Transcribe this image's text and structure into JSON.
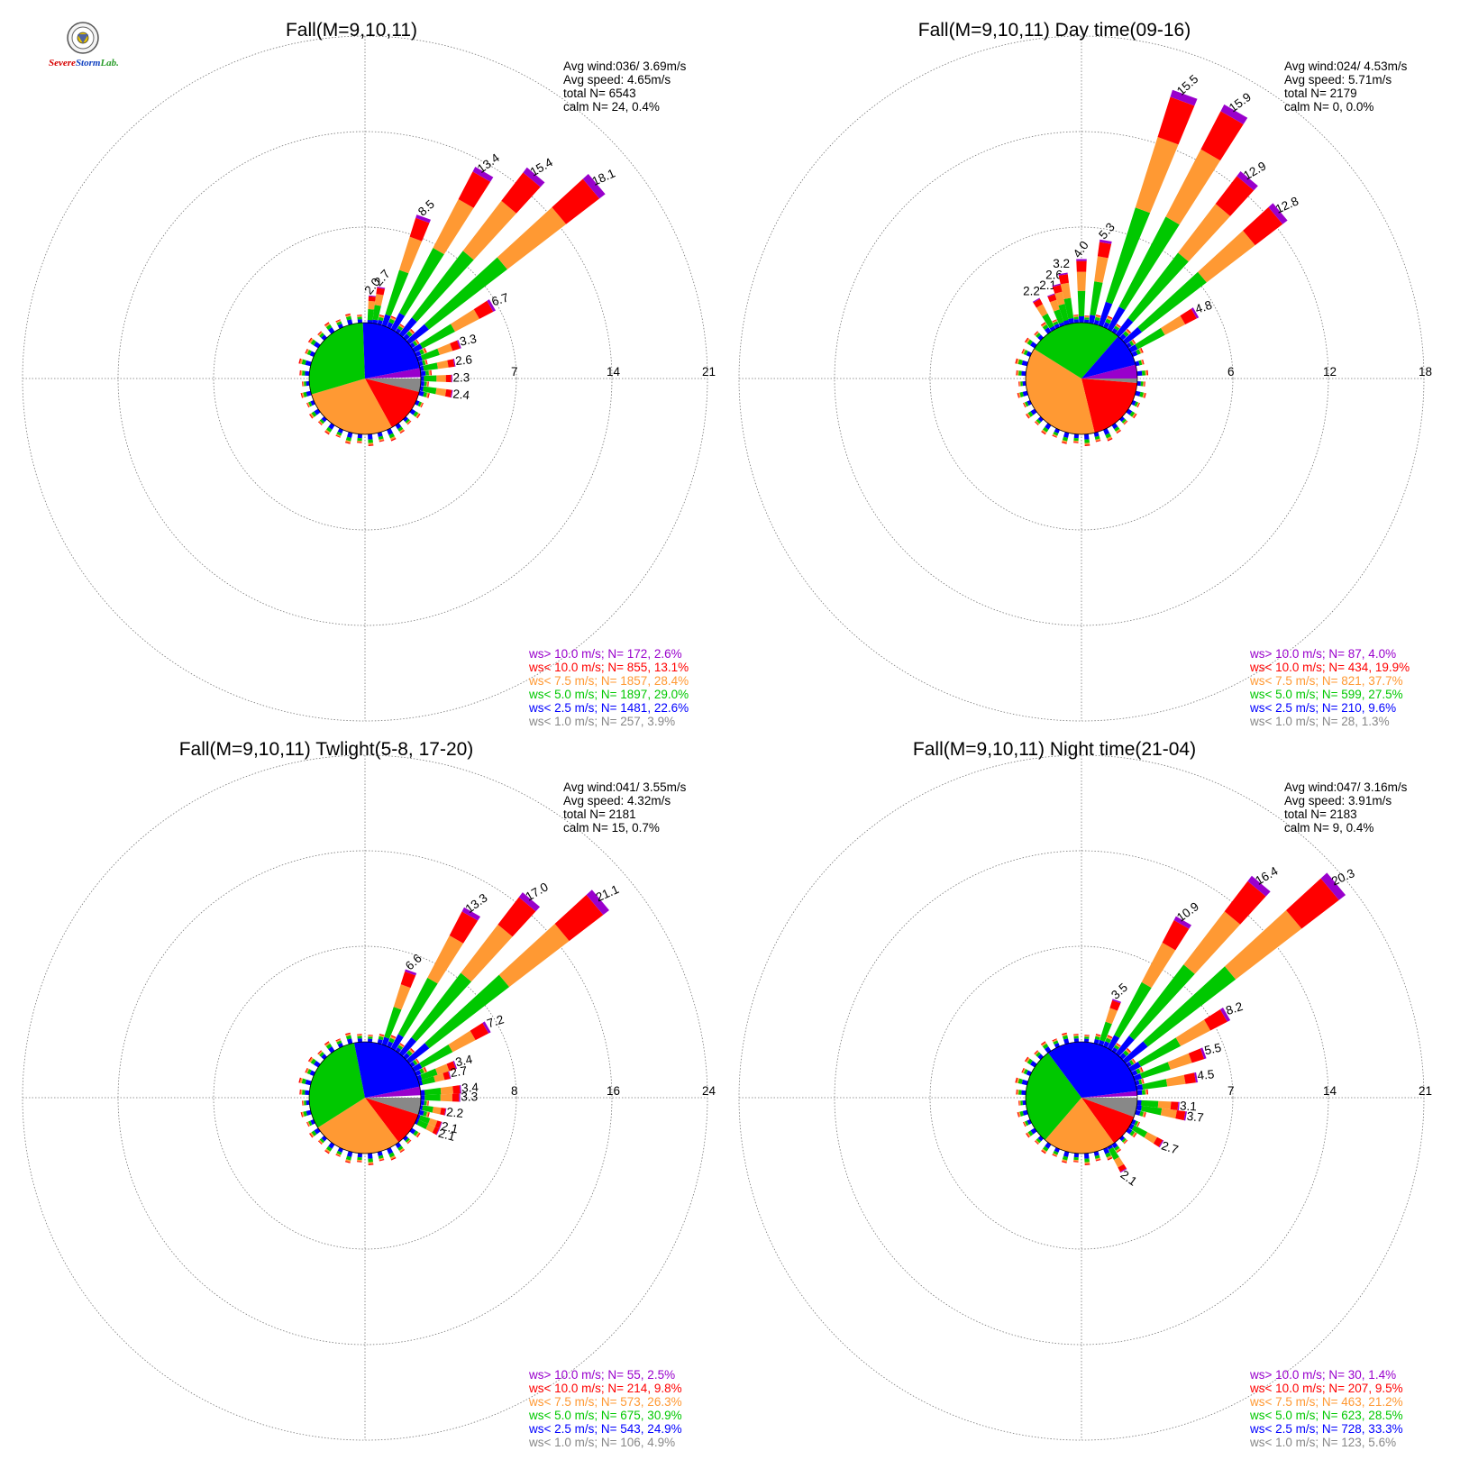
{
  "logo": {
    "word1": "S",
    "word2": "evere",
    "word3": "Storm",
    "word4": "Lab."
  },
  "colors": {
    "calm": "#888888",
    "lt2_5": "#0000ff",
    "lt5": "#00c800",
    "lt7_5": "#ff9933",
    "lt10": "#ff0000",
    "gt10": "#9900cc"
  },
  "chart_data": [
    {
      "type": "windrose",
      "title": "Fall(M=9,10,11)",
      "stats": [
        "Avg wind:036/ 3.69m/s",
        "Avg speed: 4.65m/s",
        "total N=       6543",
        "calm N=     24,   0.4%"
      ],
      "rings": [
        7,
        14,
        21
      ],
      "ring_labels": [
        "7",
        "14",
        "21"
      ],
      "pie": [
        {
          "cls": "calm",
          "pct": 3.9
        },
        {
          "cls": "lt10",
          "pct": 13.1
        },
        {
          "cls": "lt7_5",
          "pct": 28.4
        },
        {
          "cls": "lt5",
          "pct": 29.0
        },
        {
          "cls": "lt2_5",
          "pct": 22.6
        },
        {
          "cls": "gt10",
          "pct": 2.6
        }
      ],
      "petals": [
        {
          "dir": 5,
          "value": 2.0,
          "label": "2.0"
        },
        {
          "dir": 10,
          "value": 2.7,
          "label": "2.7"
        },
        {
          "dir": 20,
          "value": 8.5,
          "label": "8.5"
        },
        {
          "dir": 30,
          "value": 13.4,
          "label": "13.4"
        },
        {
          "dir": 40,
          "value": 15.4,
          "label": "15.4"
        },
        {
          "dir": 50,
          "value": 18.1,
          "label": "18.1"
        },
        {
          "dir": 60,
          "value": 6.7,
          "label": "6.7"
        },
        {
          "dir": 70,
          "value": 3.3,
          "label": "3.3"
        },
        {
          "dir": 80,
          "value": 2.6,
          "label": "2.6"
        },
        {
          "dir": 90,
          "value": 2.3,
          "label": "2.3"
        },
        {
          "dir": 100,
          "value": 2.4,
          "label": "2.4"
        }
      ],
      "legend": [
        {
          "cls": "gt10",
          "text": "ws> 10.0 m/s; N=   172,  2.6%"
        },
        {
          "cls": "lt10",
          "text": "ws< 10.0 m/s; N=   855, 13.1%"
        },
        {
          "cls": "lt7_5",
          "text": "ws<  7.5 m/s; N=  1857, 28.4%"
        },
        {
          "cls": "lt5",
          "text": "ws<  5.0 m/s; N=  1897, 29.0%"
        },
        {
          "cls": "lt2_5",
          "text": "ws<  2.5 m/s; N=  1481, 22.6%"
        },
        {
          "cls": "calm",
          "text": "ws<  1.0 m/s; N=   257,  3.9%"
        }
      ]
    },
    {
      "type": "windrose",
      "title": "Fall(M=9,10,11) Day time(09-16)",
      "stats": [
        "Avg wind:024/ 4.53m/s",
        "Avg speed: 5.71m/s",
        "total N=       2179",
        "calm N=      0,   0.0%"
      ],
      "rings": [
        6,
        12,
        18
      ],
      "ring_labels": [
        "6",
        "12",
        "18"
      ],
      "pie": [
        {
          "cls": "calm",
          "pct": 1.3
        },
        {
          "cls": "lt10",
          "pct": 19.9
        },
        {
          "cls": "lt7_5",
          "pct": 37.7
        },
        {
          "cls": "lt5",
          "pct": 27.5
        },
        {
          "cls": "lt2_5",
          "pct": 9.6
        },
        {
          "cls": "gt10",
          "pct": 4.0
        }
      ],
      "petals": [
        {
          "dir": 330,
          "value": 2.2,
          "label": "2.2"
        },
        {
          "dir": 340,
          "value": 2.1,
          "label": "2.1"
        },
        {
          "dir": 345,
          "value": 2.6,
          "label": "2.6"
        },
        {
          "dir": 350,
          "value": 3.2,
          "label": "3.2"
        },
        {
          "dir": 0,
          "value": 4.0,
          "label": "4.0"
        },
        {
          "dir": 10,
          "value": 5.3,
          "label": "5.3"
        },
        {
          "dir": 20,
          "value": 15.5,
          "label": "15.5"
        },
        {
          "dir": 30,
          "value": 15.9,
          "label": "15.9"
        },
        {
          "dir": 40,
          "value": 12.9,
          "label": "12.9"
        },
        {
          "dir": 50,
          "value": 12.8,
          "label": "12.8"
        },
        {
          "dir": 60,
          "value": 4.8,
          "label": "4.8"
        }
      ],
      "legend": [
        {
          "cls": "gt10",
          "text": "ws> 10.0 m/s; N=    87,  4.0%"
        },
        {
          "cls": "lt10",
          "text": "ws< 10.0 m/s; N=   434, 19.9%"
        },
        {
          "cls": "lt7_5",
          "text": "ws<  7.5 m/s; N=   821, 37.7%"
        },
        {
          "cls": "lt5",
          "text": "ws<  5.0 m/s; N=   599, 27.5%"
        },
        {
          "cls": "lt2_5",
          "text": "ws<  2.5 m/s; N=   210,  9.6%"
        },
        {
          "cls": "calm",
          "text": "ws<  1.0 m/s; N=    28,  1.3%"
        }
      ]
    },
    {
      "type": "windrose",
      "title": "Fall(M=9,10,11) Twlight(5-8, 17-20)",
      "stats": [
        "Avg wind:041/ 3.55m/s",
        "Avg speed: 4.32m/s",
        "total N=       2181",
        "calm N=     15,   0.7%"
      ],
      "rings": [
        8,
        16,
        24
      ],
      "ring_labels": [
        "8",
        "16",
        "24"
      ],
      "pie": [
        {
          "cls": "calm",
          "pct": 4.9
        },
        {
          "cls": "lt10",
          "pct": 9.8
        },
        {
          "cls": "lt7_5",
          "pct": 26.3
        },
        {
          "cls": "lt5",
          "pct": 30.9
        },
        {
          "cls": "lt2_5",
          "pct": 24.9
        },
        {
          "cls": "gt10",
          "pct": 2.5
        }
      ],
      "petals": [
        {
          "dir": 20,
          "value": 6.6,
          "label": "6.6"
        },
        {
          "dir": 30,
          "value": 13.3,
          "label": "13.3"
        },
        {
          "dir": 40,
          "value": 17.0,
          "label": "17.0"
        },
        {
          "dir": 50,
          "value": 21.1,
          "label": "21.1"
        },
        {
          "dir": 60,
          "value": 7.2,
          "label": "7.2"
        },
        {
          "dir": 70,
          "value": 3.4,
          "label": "3.4"
        },
        {
          "dir": 75,
          "value": 2.7,
          "label": "2.7"
        },
        {
          "dir": 85,
          "value": 3.4,
          "label": "3.4"
        },
        {
          "dir": 90,
          "value": 3.3,
          "label": "3.3"
        },
        {
          "dir": 100,
          "value": 2.2,
          "label": "2.2"
        },
        {
          "dir": 110,
          "value": 2.1,
          "label": "2.1"
        },
        {
          "dir": 115,
          "value": 2.1,
          "label": "2.1"
        }
      ],
      "legend": [
        {
          "cls": "gt10",
          "text": "ws> 10.0 m/s; N=    55,  2.5%"
        },
        {
          "cls": "lt10",
          "text": "ws< 10.0 m/s; N=   214,  9.8%"
        },
        {
          "cls": "lt7_5",
          "text": "ws<  7.5 m/s; N=   573, 26.3%"
        },
        {
          "cls": "lt5",
          "text": "ws<  5.0 m/s; N=   675, 30.9%"
        },
        {
          "cls": "lt2_5",
          "text": "ws<  2.5 m/s; N=   543, 24.9%"
        },
        {
          "cls": "calm",
          "text": "ws<  1.0 m/s; N=   106,  4.9%"
        }
      ]
    },
    {
      "type": "windrose",
      "title": "Fall(M=9,10,11) Night time(21-04)",
      "stats": [
        "Avg wind:047/ 3.16m/s",
        "Avg speed: 3.91m/s",
        "total N=       2183",
        "calm N=      9,   0.4%"
      ],
      "rings": [
        7,
        14,
        21
      ],
      "ring_labels": [
        "7",
        "14",
        "21"
      ],
      "pie": [
        {
          "cls": "calm",
          "pct": 5.6
        },
        {
          "cls": "lt10",
          "pct": 9.5
        },
        {
          "cls": "lt7_5",
          "pct": 21.2
        },
        {
          "cls": "lt5",
          "pct": 28.5
        },
        {
          "cls": "lt2_5",
          "pct": 33.3
        },
        {
          "cls": "gt10",
          "pct": 1.4
        }
      ],
      "petals": [
        {
          "dir": 20,
          "value": 3.5,
          "label": "3.5"
        },
        {
          "dir": 30,
          "value": 10.9,
          "label": "10.9"
        },
        {
          "dir": 40,
          "value": 16.4,
          "label": "16.4"
        },
        {
          "dir": 50,
          "value": 20.3,
          "label": "20.3"
        },
        {
          "dir": 60,
          "value": 8.2,
          "label": "8.2"
        },
        {
          "dir": 70,
          "value": 5.5,
          "label": "5.5"
        },
        {
          "dir": 80,
          "value": 4.5,
          "label": "4.5"
        },
        {
          "dir": 95,
          "value": 3.1,
          "label": "3.1"
        },
        {
          "dir": 100,
          "value": 3.7,
          "label": "3.7"
        },
        {
          "dir": 120,
          "value": 2.7,
          "label": "2.7"
        },
        {
          "dir": 150,
          "value": 2.1,
          "label": "2.1"
        }
      ],
      "legend": [
        {
          "cls": "gt10",
          "text": "ws> 10.0 m/s; N=    30,  1.4%"
        },
        {
          "cls": "lt10",
          "text": "ws< 10.0 m/s; N=   207,  9.5%"
        },
        {
          "cls": "lt7_5",
          "text": "ws<  7.5 m/s; N=   463, 21.2%"
        },
        {
          "cls": "lt5",
          "text": "ws<  5.0 m/s; N=   623, 28.5%"
        },
        {
          "cls": "lt2_5",
          "text": "ws<  2.5 m/s; N=   728, 33.3%"
        },
        {
          "cls": "calm",
          "text": "ws<  1.0 m/s; N=   123,  5.6%"
        }
      ]
    }
  ]
}
